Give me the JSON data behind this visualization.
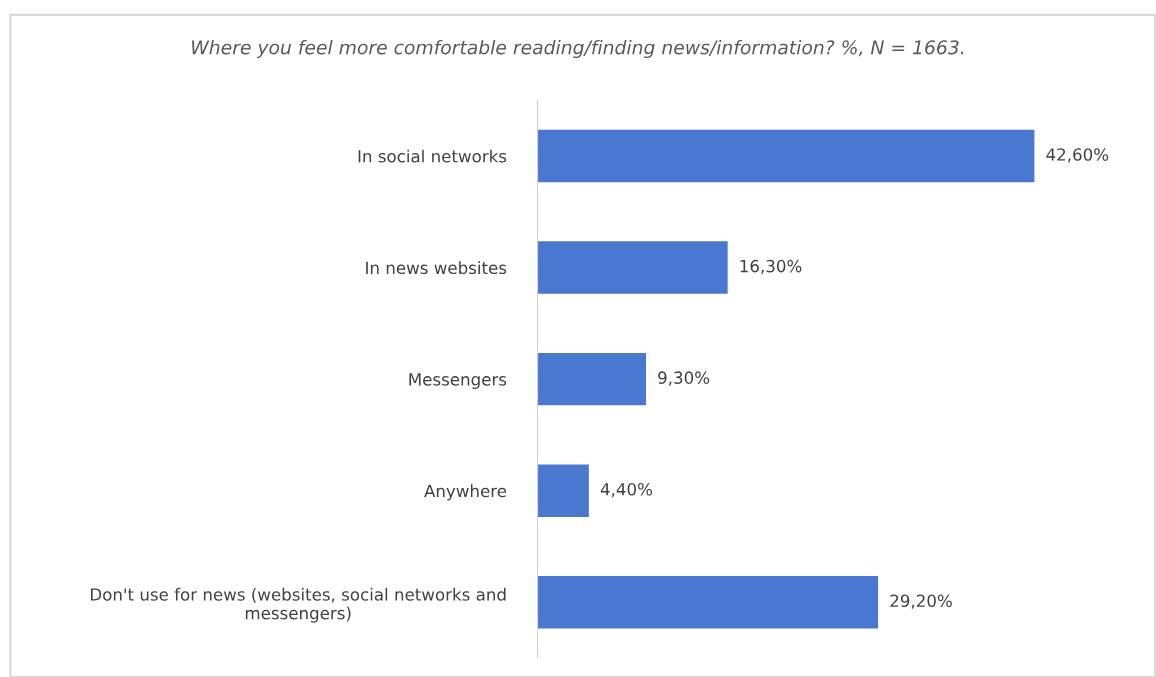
{
  "chart_data": {
    "type": "bar",
    "orientation": "horizontal",
    "title": "Where you feel more comfortable reading/finding news/information? %, N = 1663.",
    "categories": [
      "In social networks",
      "In news websites",
      "Messengers",
      "Anywhere",
      "Don't use for news (websites, social networks and\nmessengers)"
    ],
    "values": [
      42.6,
      16.3,
      9.3,
      4.4,
      29.2
    ],
    "value_labels": [
      "42,60%",
      "16,30%",
      "9,30%",
      "4,40%",
      "29,20%"
    ],
    "color": "#4a78d0",
    "grid": false,
    "legend": false
  }
}
